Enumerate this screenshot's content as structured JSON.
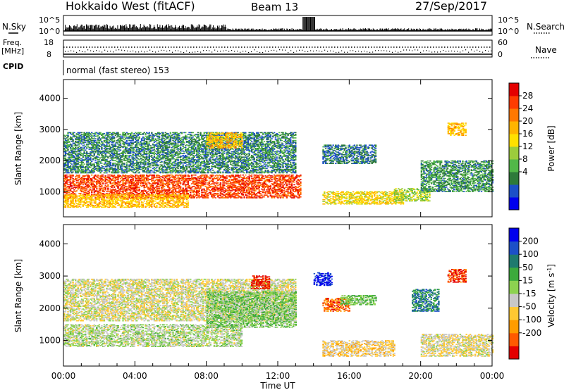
{
  "header": {
    "station": "Hokkaido West (fitACF)",
    "beam": "Beam 13",
    "date": "27/Sep/2017"
  },
  "time_axis": {
    "label": "Time UT",
    "ticks": [
      "00:00",
      "04:00",
      "08:00",
      "12:00",
      "16:00",
      "20:00",
      "00:00"
    ],
    "range_hours": [
      0,
      24
    ]
  },
  "nsky_panel": {
    "left_label": "N.Sky",
    "right_label": "N.Search",
    "ticks_left": [
      "10^5",
      "10^0"
    ],
    "ticks_right": [
      "10^5",
      "10^0"
    ]
  },
  "freq_panel": {
    "label_line1": "Freq.",
    "label_line2": "[MHz]",
    "ticks_left": [
      "18",
      "8"
    ],
    "ticks_right": [
      "60",
      "0"
    ],
    "right_label": "Nave"
  },
  "cpid_panel": {
    "label": "CPID",
    "text": "normal (fast stereo) 153"
  },
  "chart_data": [
    {
      "type": "heatmap",
      "name": "power",
      "ylabel": "Slant Range [km]",
      "y_ticks": [
        "4000",
        "3000",
        "2000",
        "1000"
      ],
      "ylim": [
        200,
        4600
      ],
      "xlim_hours": [
        0,
        24
      ],
      "colorbar": {
        "label": "Power [dB]",
        "tick_labels": [
          "28",
          "24",
          "20",
          "16",
          "12",
          "8",
          "4"
        ],
        "range": [
          0,
          32
        ],
        "colors": [
          "#0000ee",
          "#1c50c8",
          "#2e7a3a",
          "#52b848",
          "#9ccc3c",
          "#ffe000",
          "#ffb400",
          "#ff7800",
          "#ff3c00",
          "#e40000"
        ]
      },
      "regions": [
        {
          "t": [
            0,
            13.3
          ],
          "r": [
            800,
            1550
          ],
          "level": 27
        },
        {
          "t": [
            0,
            7
          ],
          "r": [
            500,
            900
          ],
          "level": 20
        },
        {
          "t": [
            0,
            13
          ],
          "r": [
            1600,
            2900
          ],
          "level": 8
        },
        {
          "t": [
            8,
            10
          ],
          "r": [
            2400,
            2900
          ],
          "level": 20
        },
        {
          "t": [
            14.5,
            17.5
          ],
          "r": [
            1900,
            2500
          ],
          "level": 7
        },
        {
          "t": [
            14.5,
            19
          ],
          "r": [
            600,
            1000
          ],
          "level": 18
        },
        {
          "t": [
            18.5,
            20.5
          ],
          "r": [
            700,
            1100
          ],
          "level": 14
        },
        {
          "t": [
            20,
            24
          ],
          "r": [
            1000,
            2000
          ],
          "level": 9
        },
        {
          "t": [
            21.5,
            22.5
          ],
          "r": [
            2800,
            3200
          ],
          "level": 20
        }
      ]
    },
    {
      "type": "heatmap",
      "name": "velocity",
      "ylabel": "Slant Range [km]",
      "y_ticks": [
        "4000",
        "3000",
        "2000",
        "1000"
      ],
      "ylim": [
        200,
        4600
      ],
      "xlim_hours": [
        0,
        24
      ],
      "colorbar": {
        "label": "Velocity [m s^-1]",
        "tick_labels": [
          "200",
          "100",
          "50",
          "15",
          "-15",
          "-50",
          "-100",
          "-200"
        ],
        "range": [
          -250,
          250
        ],
        "colors": [
          "#e40000",
          "#ff5a00",
          "#ff9c00",
          "#ffc832",
          "#c8c8c8",
          "#8cd250",
          "#3caa3c",
          "#1e7a6e",
          "#1c50c8",
          "#0000ee"
        ]
      },
      "regions": [
        {
          "t": [
            0,
            10
          ],
          "r": [
            800,
            1500
          ],
          "level": 0
        },
        {
          "t": [
            0,
            13
          ],
          "r": [
            1600,
            2900
          ],
          "level": -30
        },
        {
          "t": [
            8,
            13
          ],
          "r": [
            1400,
            2500
          ],
          "level": 35
        },
        {
          "t": [
            10.5,
            11.5
          ],
          "r": [
            2600,
            3000
          ],
          "level": -220
        },
        {
          "t": [
            14,
            15
          ],
          "r": [
            2700,
            3100
          ],
          "level": 210
        },
        {
          "t": [
            14.5,
            16
          ],
          "r": [
            1900,
            2300
          ],
          "level": -160
        },
        {
          "t": [
            14.5,
            18.5
          ],
          "r": [
            500,
            1000
          ],
          "level": -60
        },
        {
          "t": [
            15.5,
            17.5
          ],
          "r": [
            2100,
            2400
          ],
          "level": 40
        },
        {
          "t": [
            19.5,
            21
          ],
          "r": [
            1900,
            2600
          ],
          "level": 120
        },
        {
          "t": [
            21.5,
            22.5
          ],
          "r": [
            2800,
            3200
          ],
          "level": -200
        },
        {
          "t": [
            20,
            24
          ],
          "r": [
            500,
            1200
          ],
          "level": -40
        }
      ]
    }
  ]
}
